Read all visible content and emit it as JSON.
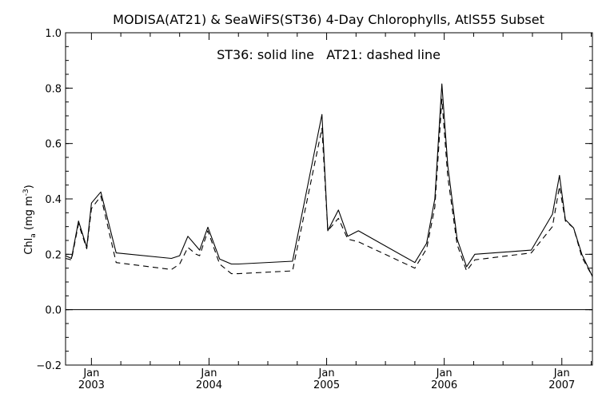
{
  "chart_data": {
    "type": "line",
    "title": "MODISA(AT21) & SeaWiFS(ST36) 4-Day Chlorophylls, AtlS55 Subset",
    "annotation": "ST36: solid line   AT21: dashed line",
    "ylabel_main": "Chl",
    "ylabel_sub": "a",
    "ylabel_unit_open": " (mg m",
    "ylabel_unit_sup": "-3",
    "ylabel_unit_close": ")",
    "ylim": [
      -0.2,
      1.0
    ],
    "yticks": [
      -0.2,
      0.0,
      0.2,
      0.4,
      0.6,
      0.8,
      1.0
    ],
    "ytick_labels": [
      "−0.2",
      "0.0",
      "0.2",
      "0.4",
      "0.6",
      "0.8",
      "1.0"
    ],
    "xlim": [
      2002.78,
      2007.26
    ],
    "xticks": [
      {
        "pos": 2003.0,
        "month": "Jan",
        "year": "2003"
      },
      {
        "pos": 2004.0,
        "month": "Jan",
        "year": "2004"
      },
      {
        "pos": 2005.0,
        "month": "Jan",
        "year": "2005"
      },
      {
        "pos": 2006.0,
        "month": "Jan",
        "year": "2006"
      },
      {
        "pos": 2007.0,
        "month": "Jan",
        "year": "2007"
      }
    ],
    "reference_line": 0.0,
    "grid": false,
    "series": [
      {
        "name": "ST36",
        "style": "solid",
        "x": [
          2002.78,
          2002.83,
          2002.89,
          2002.96,
          2003.0,
          2003.08,
          2003.21,
          2003.68,
          2003.75,
          2003.82,
          2003.89,
          2003.92,
          2003.99,
          2004.09,
          2004.19,
          2004.25,
          2004.71,
          2004.96,
          2005.01,
          2005.1,
          2005.18,
          2005.27,
          2005.75,
          2005.85,
          2005.92,
          2005.98,
          2006.03,
          2006.11,
          2006.19,
          2006.26,
          2006.74,
          2006.92,
          2006.98,
          2007.03,
          2007.1,
          2007.17,
          2007.26
        ],
        "y": [
          0.195,
          0.185,
          0.32,
          0.225,
          0.385,
          0.425,
          0.205,
          0.185,
          0.195,
          0.265,
          0.23,
          0.215,
          0.298,
          0.183,
          0.165,
          0.165,
          0.175,
          0.705,
          0.285,
          0.36,
          0.265,
          0.285,
          0.17,
          0.24,
          0.4,
          0.815,
          0.52,
          0.255,
          0.155,
          0.2,
          0.215,
          0.345,
          0.485,
          0.325,
          0.295,
          0.2,
          0.12
        ]
      },
      {
        "name": "AT21",
        "style": "dashed",
        "x": [
          2002.78,
          2002.83,
          2002.89,
          2002.96,
          2003.0,
          2003.08,
          2003.21,
          2003.68,
          2003.75,
          2003.82,
          2003.89,
          2003.92,
          2003.99,
          2004.09,
          2004.19,
          2004.25,
          2004.71,
          2004.96,
          2005.01,
          2005.1,
          2005.18,
          2005.27,
          2005.75,
          2005.85,
          2005.92,
          2005.98,
          2006.03,
          2006.11,
          2006.19,
          2006.26,
          2006.74,
          2006.92,
          2006.98,
          2007.03,
          2007.1,
          2007.17,
          2007.26
        ],
        "y": [
          0.185,
          0.18,
          0.31,
          0.22,
          0.365,
          0.41,
          0.17,
          0.145,
          0.165,
          0.225,
          0.2,
          0.195,
          0.285,
          0.165,
          0.13,
          0.13,
          0.14,
          0.655,
          0.285,
          0.33,
          0.255,
          0.245,
          0.15,
          0.22,
          0.37,
          0.76,
          0.48,
          0.235,
          0.14,
          0.18,
          0.205,
          0.3,
          0.445,
          0.32,
          0.295,
          0.19,
          0.12
        ]
      }
    ]
  }
}
